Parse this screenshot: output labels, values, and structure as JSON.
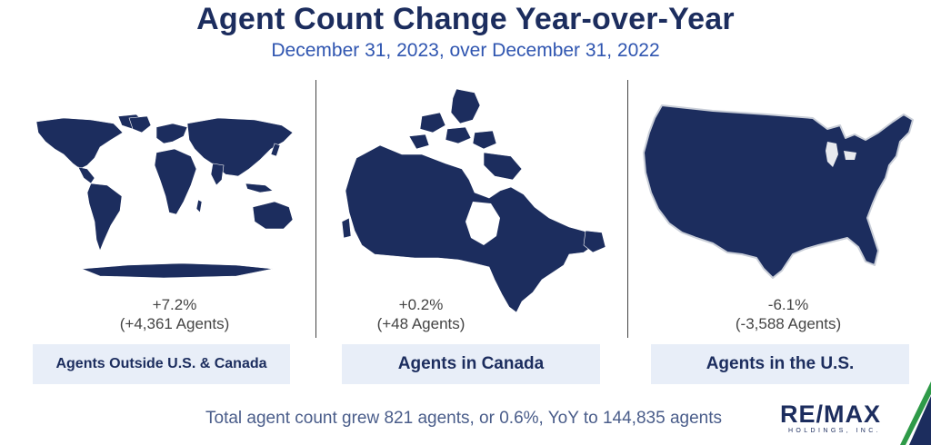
{
  "header": {
    "title": "Agent Count Change Year-over-Year",
    "subtitle": "December 31, 2023, over December 31, 2022"
  },
  "panels": [
    {
      "id": "outside",
      "change": "+7.2%",
      "agents": "(+4,361 Agents)",
      "label": "Agents Outside U.S. & Canada",
      "map_icon": "world-map-icon"
    },
    {
      "id": "canada",
      "change": "+0.2%",
      "agents": "(+48 Agents)",
      "label": "Agents in Canada",
      "map_icon": "canada-map-icon"
    },
    {
      "id": "us",
      "change": "-6.1%",
      "agents": "(-3,588 Agents)",
      "label": "Agents in the U.S.",
      "map_icon": "usa-map-icon"
    }
  ],
  "footer": {
    "summary": "Total agent count grew 821 agents, or 0.6%, YoY to 144,835 agents"
  },
  "logo": {
    "main": "RE/MAX",
    "sub": "HOLDINGS, INC."
  },
  "colors": {
    "navy": "#1c2d5e",
    "accent_blue": "#2f55b0",
    "label_bg": "#e8eef8",
    "accent_green": "#2e9a48"
  }
}
